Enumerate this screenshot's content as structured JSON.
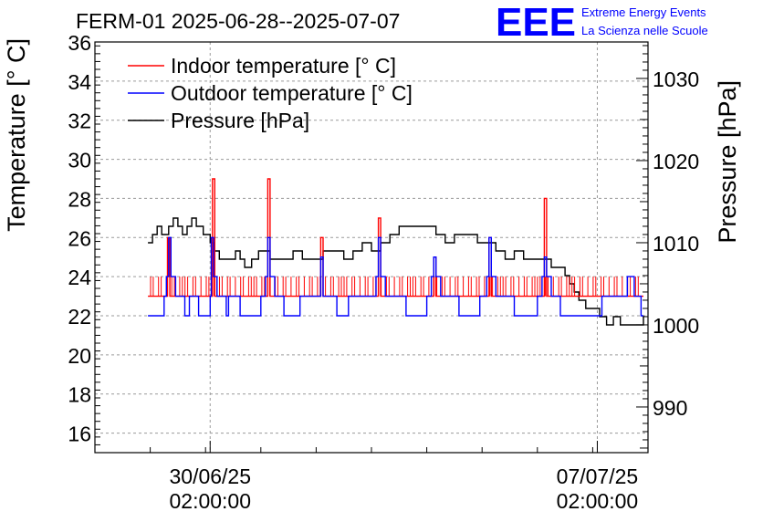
{
  "chart_data": {
    "type": "line",
    "title": "FERM-01 2025-06-28--2025-07-07",
    "logo": {
      "text": "EEE",
      "line1": "Extreme Energy Events",
      "line2": "La Scienza nelle Scuole",
      "color": "#0000ff"
    },
    "ylabel_left": "Temperature [° C]",
    "ylabel_right": "Pressure [hPa]",
    "ylim_left": [
      15,
      36
    ],
    "ylim_right": [
      984.44,
      1034.44
    ],
    "yticks_left": [
      "16",
      "18",
      "20",
      "22",
      "24",
      "26",
      "28",
      "30",
      "32",
      "34",
      "36"
    ],
    "yticks_right": [
      "990",
      "1000",
      "1010",
      "1020",
      "1030"
    ],
    "xlim": [
      "2025-06-28 00:00",
      "2025-07-08 00:00"
    ],
    "xticks": [
      {
        "line1": "30/06/25",
        "line2": "02:00:00",
        "x": "2025-06-30 02:00"
      },
      {
        "line1": "07/07/25",
        "line2": "02:00:00",
        "x": "2025-07-07 02:00"
      }
    ],
    "grid": true,
    "legend_position": "top-left",
    "series": [
      {
        "name": "Indoor temperature [° C]",
        "color": "#ff0000",
        "axis": "left",
        "baseline": 23,
        "noise_high": 24,
        "points": [
          [
            "2025-06-28 23:00",
            23
          ],
          [
            "2025-06-29 07:00",
            23
          ],
          [
            "2025-06-29 07:30",
            26
          ],
          [
            "2025-06-29 08:30",
            23
          ],
          [
            "2025-06-30 02:00",
            23
          ],
          [
            "2025-06-30 03:00",
            29
          ],
          [
            "2025-06-30 04:00",
            23
          ],
          [
            "2025-07-01 02:00",
            23
          ],
          [
            "2025-07-01 03:00",
            29
          ],
          [
            "2025-07-01 04:00",
            23
          ],
          [
            "2025-07-02 01:00",
            23
          ],
          [
            "2025-07-02 02:00",
            26
          ],
          [
            "2025-07-02 03:00",
            23
          ],
          [
            "2025-07-03 02:00",
            23
          ],
          [
            "2025-07-03 03:00",
            27
          ],
          [
            "2025-07-03 04:00",
            23
          ],
          [
            "2025-07-04 02:00",
            23
          ],
          [
            "2025-07-04 03:00",
            25
          ],
          [
            "2025-07-04 04:00",
            23
          ],
          [
            "2025-07-05 02:00",
            23
          ],
          [
            "2025-07-05 03:00",
            26
          ],
          [
            "2025-07-05 04:00",
            23
          ],
          [
            "2025-07-06 02:00",
            23
          ],
          [
            "2025-07-06 03:00",
            28
          ],
          [
            "2025-07-06 04:00",
            23
          ],
          [
            "2025-07-07 02:00",
            23
          ],
          [
            "2025-07-07 22:00",
            23
          ]
        ]
      },
      {
        "name": "Outdoor temperature [° C]",
        "color": "#0000ff",
        "axis": "left",
        "points": [
          [
            "2025-06-28 23:00",
            22
          ],
          [
            "2025-06-29 05:00",
            22
          ],
          [
            "2025-06-29 06:00",
            23
          ],
          [
            "2025-06-29 07:00",
            24
          ],
          [
            "2025-06-29 08:00",
            26
          ],
          [
            "2025-06-29 09:00",
            24
          ],
          [
            "2025-06-29 11:00",
            23
          ],
          [
            "2025-06-29 14:00",
            23
          ],
          [
            "2025-06-29 15:00",
            22
          ],
          [
            "2025-06-29 17:00",
            23
          ],
          [
            "2025-06-29 20:00",
            23
          ],
          [
            "2025-06-29 21:00",
            22
          ],
          [
            "2025-06-30 01:00",
            22
          ],
          [
            "2025-06-30 02:00",
            23
          ],
          [
            "2025-06-30 02:30",
            26
          ],
          [
            "2025-06-30 03:30",
            24
          ],
          [
            "2025-06-30 05:00",
            23
          ],
          [
            "2025-06-30 08:00",
            23
          ],
          [
            "2025-06-30 09:00",
            22
          ],
          [
            "2025-06-30 10:00",
            23
          ],
          [
            "2025-06-30 14:00",
            23
          ],
          [
            "2025-06-30 15:00",
            22
          ],
          [
            "2025-06-30 23:00",
            22
          ],
          [
            "2025-07-01 00:00",
            23
          ],
          [
            "2025-07-01 02:00",
            24
          ],
          [
            "2025-07-01 03:00",
            26
          ],
          [
            "2025-07-01 04:00",
            24
          ],
          [
            "2025-07-01 06:00",
            23
          ],
          [
            "2025-07-01 09:00",
            23
          ],
          [
            "2025-07-01 10:00",
            22
          ],
          [
            "2025-07-01 16:00",
            22
          ],
          [
            "2025-07-01 17:00",
            23
          ],
          [
            "2025-07-02 00:00",
            23
          ],
          [
            "2025-07-02 02:00",
            25
          ],
          [
            "2025-07-02 03:00",
            23
          ],
          [
            "2025-07-02 08:00",
            23
          ],
          [
            "2025-07-02 09:00",
            22
          ],
          [
            "2025-07-02 13:00",
            22
          ],
          [
            "2025-07-02 14:00",
            23
          ],
          [
            "2025-07-03 01:00",
            23
          ],
          [
            "2025-07-03 02:00",
            24
          ],
          [
            "2025-07-03 03:00",
            26
          ],
          [
            "2025-07-03 04:00",
            24
          ],
          [
            "2025-07-03 06:00",
            23
          ],
          [
            "2025-07-03 14:00",
            23
          ],
          [
            "2025-07-03 15:00",
            22
          ],
          [
            "2025-07-03 23:00",
            22
          ],
          [
            "2025-07-04 00:00",
            23
          ],
          [
            "2025-07-04 02:00",
            24
          ],
          [
            "2025-07-04 03:00",
            25
          ],
          [
            "2025-07-04 04:00",
            24
          ],
          [
            "2025-07-04 06:00",
            23
          ],
          [
            "2025-07-04 13:00",
            23
          ],
          [
            "2025-07-04 14:00",
            22
          ],
          [
            "2025-07-04 22:00",
            22
          ],
          [
            "2025-07-04 23:00",
            23
          ],
          [
            "2025-07-05 02:00",
            24
          ],
          [
            "2025-07-05 03:00",
            26
          ],
          [
            "2025-07-05 04:00",
            24
          ],
          [
            "2025-07-05 06:00",
            23
          ],
          [
            "2025-07-05 13:00",
            23
          ],
          [
            "2025-07-05 14:00",
            22
          ],
          [
            "2025-07-05 23:00",
            22
          ],
          [
            "2025-07-06 00:00",
            23
          ],
          [
            "2025-07-06 02:00",
            24
          ],
          [
            "2025-07-06 03:00",
            25
          ],
          [
            "2025-07-06 04:00",
            24
          ],
          [
            "2025-07-06 06:00",
            23
          ],
          [
            "2025-07-06 09:00",
            23
          ],
          [
            "2025-07-06 10:00",
            22
          ],
          [
            "2025-07-07 03:00",
            22
          ],
          [
            "2025-07-07 04:00",
            23
          ],
          [
            "2025-07-07 13:00",
            23
          ],
          [
            "2025-07-07 15:00",
            24
          ],
          [
            "2025-07-07 18:00",
            23
          ],
          [
            "2025-07-07 20:00",
            23
          ],
          [
            "2025-07-07 21:00",
            22
          ],
          [
            "2025-07-07 22:00",
            22
          ]
        ]
      },
      {
        "name": "Pressure [hPa]",
        "color": "#000000",
        "axis": "right",
        "points": [
          [
            "2025-06-28 23:00",
            1010
          ],
          [
            "2025-06-29 01:00",
            1011
          ],
          [
            "2025-06-29 03:00",
            1012
          ],
          [
            "2025-06-29 05:00",
            1011
          ],
          [
            "2025-06-29 08:00",
            1012
          ],
          [
            "2025-06-29 10:00",
            1013
          ],
          [
            "2025-06-29 12:00",
            1012
          ],
          [
            "2025-06-29 14:00",
            1011
          ],
          [
            "2025-06-29 16:00",
            1012
          ],
          [
            "2025-06-29 18:00",
            1013
          ],
          [
            "2025-06-29 20:00",
            1012
          ],
          [
            "2025-06-29 23:00",
            1011
          ],
          [
            "2025-06-30 02:00",
            1010
          ],
          [
            "2025-06-30 04:00",
            1009
          ],
          [
            "2025-06-30 06:00",
            1008
          ],
          [
            "2025-06-30 10:00",
            1008
          ],
          [
            "2025-06-30 13:00",
            1009
          ],
          [
            "2025-06-30 15:00",
            1008
          ],
          [
            "2025-06-30 17:00",
            1007
          ],
          [
            "2025-06-30 20:00",
            1008
          ],
          [
            "2025-06-30 23:00",
            1009
          ],
          [
            "2025-07-01 02:00",
            1009
          ],
          [
            "2025-07-01 04:00",
            1008
          ],
          [
            "2025-07-01 08:00",
            1008
          ],
          [
            "2025-07-01 14:00",
            1009
          ],
          [
            "2025-07-01 18:00",
            1008
          ],
          [
            "2025-07-02 00:00",
            1008
          ],
          [
            "2025-07-02 03:00",
            1009
          ],
          [
            "2025-07-02 08:00",
            1009
          ],
          [
            "2025-07-02 12:00",
            1008
          ],
          [
            "2025-07-02 16:00",
            1009
          ],
          [
            "2025-07-02 20:00",
            1010
          ],
          [
            "2025-07-03 00:00",
            1009
          ],
          [
            "2025-07-03 04:00",
            1010
          ],
          [
            "2025-07-03 08:00",
            1011
          ],
          [
            "2025-07-03 12:00",
            1012
          ],
          [
            "2025-07-03 18:00",
            1012
          ],
          [
            "2025-07-04 00:00",
            1012
          ],
          [
            "2025-07-04 04:00",
            1011
          ],
          [
            "2025-07-04 08:00",
            1010
          ],
          [
            "2025-07-04 12:00",
            1011
          ],
          [
            "2025-07-04 16:00",
            1011
          ],
          [
            "2025-07-04 22:00",
            1010
          ],
          [
            "2025-07-05 02:00",
            1010
          ],
          [
            "2025-07-05 06:00",
            1009
          ],
          [
            "2025-07-05 10:00",
            1008
          ],
          [
            "2025-07-05 14:00",
            1009
          ],
          [
            "2025-07-05 18:00",
            1008
          ],
          [
            "2025-07-05 22:00",
            1008
          ],
          [
            "2025-07-06 02:00",
            1008
          ],
          [
            "2025-07-06 06:00",
            1007
          ],
          [
            "2025-07-06 09:00",
            1007
          ],
          [
            "2025-07-06 12:00",
            1006
          ],
          [
            "2025-07-06 14:00",
            1005
          ],
          [
            "2025-07-06 16:00",
            1004
          ],
          [
            "2025-07-06 18:00",
            1003
          ],
          [
            "2025-07-06 21:00",
            1002
          ],
          [
            "2025-07-07 00:00",
            1002
          ],
          [
            "2025-07-07 03:00",
            1001
          ],
          [
            "2025-07-07 06:00",
            1000
          ],
          [
            "2025-07-07 09:00",
            1001
          ],
          [
            "2025-07-07 12:00",
            1000
          ],
          [
            "2025-07-07 15:00",
            1000
          ],
          [
            "2025-07-07 18:00",
            1000
          ],
          [
            "2025-07-07 22:00",
            1001
          ]
        ]
      }
    ]
  }
}
